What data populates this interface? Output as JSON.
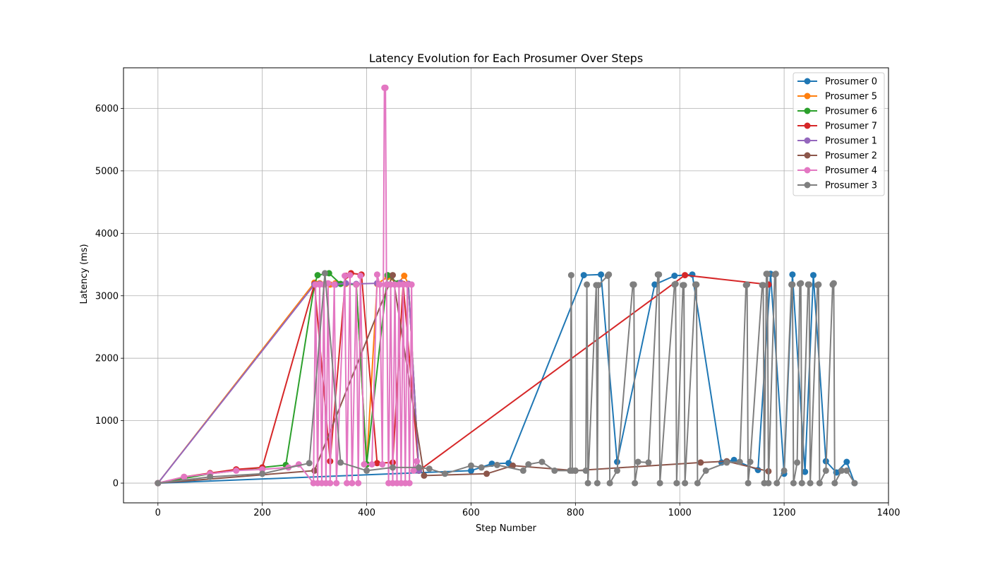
{
  "chart_data": {
    "type": "line",
    "title": "Latency Evolution for Each Prosumer Over Steps",
    "xlabel": "Step Number",
    "ylabel": "Latency (ms)",
    "xlim": [
      -66,
      1400
    ],
    "ylim": [
      -316,
      6650
    ],
    "xticks": [
      0,
      200,
      400,
      600,
      800,
      1000,
      1200,
      1400
    ],
    "yticks": [
      0,
      1000,
      2000,
      3000,
      4000,
      5000,
      6000
    ],
    "grid": true,
    "legend_position": "top-right",
    "series": [
      {
        "name": "Prosumer 0",
        "color": "#1f77b4",
        "x": [
          0,
          600,
          640,
          672,
          816,
          849,
          880,
          952,
          990,
          1024,
          1080,
          1104,
          1150,
          1174,
          1200,
          1216,
          1240,
          1256,
          1280,
          1300,
          1320,
          1335
        ],
        "y": [
          0,
          200,
          310,
          320,
          3330,
          3340,
          340,
          3180,
          3320,
          3340,
          330,
          370,
          210,
          3350,
          150,
          3340,
          180,
          3330,
          350,
          170,
          340,
          0
        ]
      },
      {
        "name": "Prosumer 5",
        "color": "#ff7f0e",
        "x": [
          0,
          300,
          310,
          320,
          330,
          340,
          360,
          380,
          400,
          420,
          440,
          460,
          472,
          480,
          500
        ],
        "y": [
          0,
          3210,
          3200,
          3190,
          3180,
          3200,
          3190,
          3180,
          300,
          3190,
          3300,
          3200,
          3320,
          3190,
          200
        ]
      },
      {
        "name": "Prosumer 6",
        "color": "#2ca02c",
        "x": [
          0,
          100,
          200,
          245,
          300,
          306,
          328,
          350,
          380,
          400,
          440,
          460,
          480,
          500
        ],
        "y": [
          0,
          150,
          250,
          290,
          3180,
          3330,
          3360,
          3190,
          3180,
          300,
          3330,
          3200,
          3190,
          200
        ]
      },
      {
        "name": "Prosumer 7",
        "color": "#d62728",
        "x": [
          0,
          50,
          100,
          150,
          200,
          300,
          330,
          360,
          370,
          390,
          420,
          450,
          470,
          500,
          1010,
          1170
        ],
        "y": [
          0,
          100,
          160,
          220,
          250,
          3190,
          350,
          3320,
          3360,
          3340,
          320,
          330,
          3190,
          200,
          3330,
          3180
        ]
      },
      {
        "name": "Prosumer 1",
        "color": "#9467bd",
        "x": [
          0,
          300,
          310,
          340,
          360,
          380,
          420,
          440,
          465,
          480,
          500
        ],
        "y": [
          0,
          3180,
          3190,
          3180,
          3200,
          3190,
          3200,
          3180,
          3210,
          3190,
          200
        ]
      },
      {
        "name": "Prosumer 2",
        "color": "#8c564b",
        "x": [
          0,
          300,
          450,
          510,
          630,
          680,
          800,
          1040,
          1090,
          1170
        ],
        "y": [
          0,
          200,
          3330,
          120,
          150,
          280,
          200,
          330,
          350,
          190
        ]
      },
      {
        "name": "Prosumer 4",
        "color": "#e377c2",
        "x": [
          0,
          50,
          100,
          150,
          200,
          250,
          270,
          298,
          302,
          306,
          310,
          314,
          318,
          322,
          326,
          330,
          338,
          342,
          358,
          362,
          368,
          372,
          380,
          384,
          388,
          395,
          410,
          420,
          425,
          430,
          434,
          436,
          438,
          442,
          446,
          450,
          454,
          458,
          462,
          466,
          470,
          474,
          478,
          482,
          486,
          490,
          496
        ],
        "y": [
          0,
          100,
          150,
          200,
          220,
          250,
          300,
          0,
          3180,
          0,
          3180,
          0,
          3180,
          0,
          3200,
          0,
          3180,
          0,
          3320,
          0,
          3330,
          0,
          3180,
          0,
          3320,
          300,
          300,
          3340,
          3180,
          300,
          6330,
          6330,
          3180,
          0,
          3180,
          0,
          3180,
          0,
          3180,
          0,
          3180,
          0,
          3180,
          0,
          3180,
          200,
          350
        ]
      },
      {
        "name": "Prosumer 3",
        "color": "#7f7f7f",
        "x": [
          0,
          100,
          200,
          290,
          320,
          350,
          400,
          450,
          500,
          520,
          550,
          600,
          620,
          650,
          700,
          710,
          736,
          760,
          790,
          792,
          794,
          800,
          820,
          822,
          824,
          840,
          842,
          844,
          862,
          864,
          866,
          880,
          910,
          912,
          914,
          920,
          940,
          958,
          960,
          962,
          990,
          992,
          994,
          1006,
          1008,
          1010,
          1030,
          1032,
          1034,
          1050,
          1090,
          1115,
          1127,
          1129,
          1131,
          1135,
          1158,
          1160,
          1162,
          1166,
          1168,
          1170,
          1182,
          1184,
          1186,
          1200,
          1214,
          1216,
          1218,
          1225,
          1230,
          1232,
          1234,
          1246,
          1248,
          1250,
          1264,
          1266,
          1268,
          1280,
          1293,
          1295,
          1297,
          1310,
          1320,
          1335
        ],
        "y": [
          0,
          100,
          150,
          320,
          3360,
          330,
          200,
          250,
          250,
          230,
          150,
          280,
          250,
          290,
          200,
          300,
          340,
          200,
          200,
          3330,
          200,
          200,
          200,
          3180,
          0,
          3170,
          0,
          3170,
          3320,
          3340,
          0,
          200,
          3180,
          3180,
          0,
          340,
          330,
          3340,
          3340,
          0,
          3180,
          3190,
          0,
          3170,
          3170,
          0,
          3180,
          3180,
          0,
          200,
          330,
          340,
          3170,
          3180,
          0,
          340,
          3170,
          3170,
          0,
          3350,
          3350,
          0,
          3340,
          3350,
          0,
          200,
          3180,
          3180,
          0,
          330,
          3190,
          3200,
          0,
          3180,
          3180,
          0,
          3170,
          3180,
          0,
          200,
          3180,
          3200,
          0,
          200,
          200,
          0
        ]
      }
    ]
  }
}
